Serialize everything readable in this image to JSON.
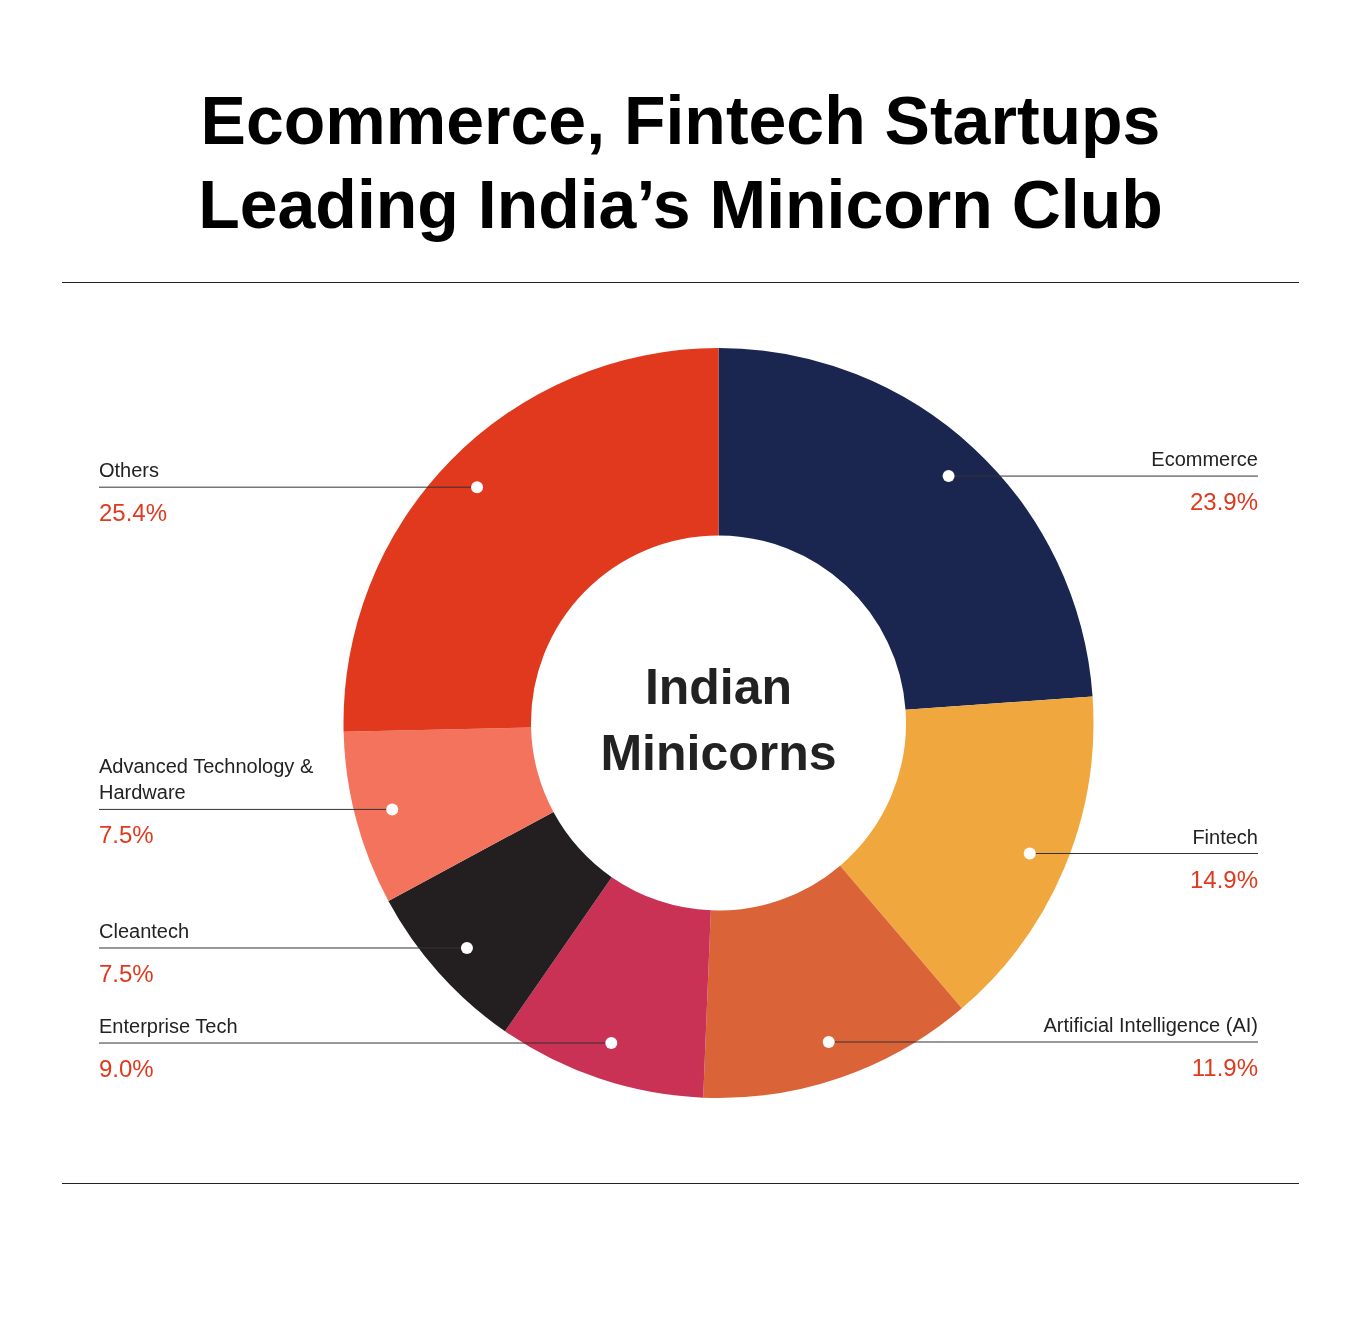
{
  "chart_data": {
    "type": "donut",
    "title": "Ecommerce, Fintech Startups Leading India’s Minicorn Club",
    "categories": [
      "Ecommerce",
      "Fintech",
      "Artificial Intelligence (AI)",
      "Enterprise Tech",
      "Cleantech",
      "Advanced Technology & Hardware",
      "Others"
    ],
    "values": [
      23.9,
      14.9,
      11.9,
      9.0,
      7.5,
      7.5,
      25.4
    ],
    "colors": [
      "#1a2550",
      "#f0a83e",
      "#db6338",
      "#c93155",
      "#231f20",
      "#f4735d",
      "#e0391e"
    ],
    "value_labels": [
      "23.9%",
      "14.9%",
      "11.9%",
      "9.0%",
      "7.5%",
      "7.5%",
      "25.4%"
    ],
    "annotations": [
      "Indian Minicorns"
    ],
    "legend": false
  }
}
